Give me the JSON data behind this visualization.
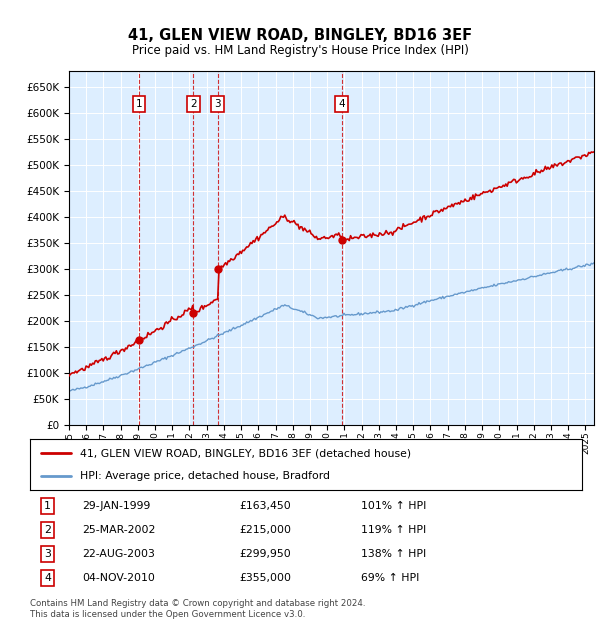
{
  "title": "41, GLEN VIEW ROAD, BINGLEY, BD16 3EF",
  "subtitle": "Price paid vs. HM Land Registry's House Price Index (HPI)",
  "legend_label_red": "41, GLEN VIEW ROAD, BINGLEY, BD16 3EF (detached house)",
  "legend_label_blue": "HPI: Average price, detached house, Bradford",
  "footnote": "Contains HM Land Registry data © Crown copyright and database right 2024.\nThis data is licensed under the Open Government Licence v3.0.",
  "transactions": [
    {
      "num": 1,
      "date": "29-JAN-1999",
      "price": 163450,
      "pct": "101%",
      "dir": "↑"
    },
    {
      "num": 2,
      "date": "25-MAR-2002",
      "price": 215000,
      "pct": "119%",
      "dir": "↑"
    },
    {
      "num": 3,
      "date": "22-AUG-2003",
      "price": 299950,
      "pct": "138%",
      "dir": "↑"
    },
    {
      "num": 4,
      "date": "04-NOV-2010",
      "price": 355000,
      "pct": "69%",
      "dir": "↑"
    }
  ],
  "transaction_years": [
    1999.08,
    2002.23,
    2003.64,
    2010.84
  ],
  "transaction_prices": [
    163450,
    215000,
    299950,
    355000
  ],
  "red_color": "#cc0000",
  "blue_color": "#6699cc",
  "background_color": "#ddeeff",
  "ylim": [
    0,
    680000
  ],
  "xlim_start": 1995,
  "xlim_end": 2025.5
}
